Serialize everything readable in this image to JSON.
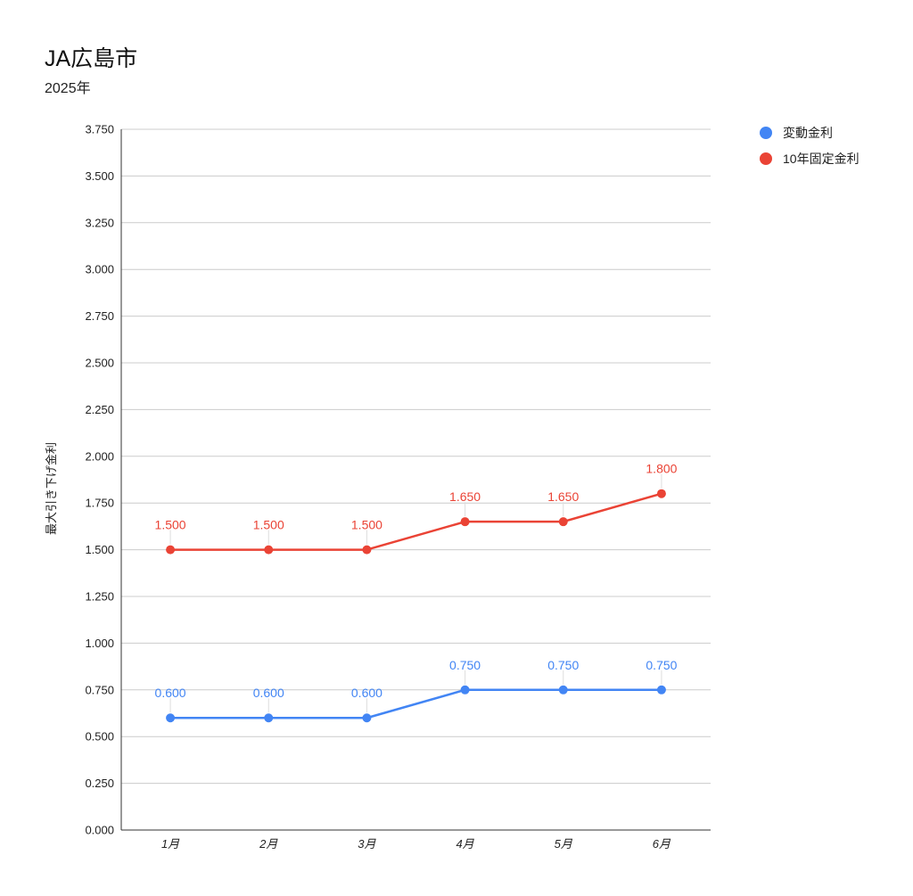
{
  "chart_data": {
    "type": "line",
    "title": "JA広島市",
    "subtitle": "2025年",
    "xlabel": "",
    "ylabel": "最大引き下げ金利",
    "categories": [
      "1月",
      "2月",
      "3月",
      "4月",
      "5月",
      "6月"
    ],
    "ylim": [
      0,
      3.75
    ],
    "yticks": [
      "0.000",
      "0.250",
      "0.500",
      "0.750",
      "1.000",
      "1.250",
      "1.500",
      "1.750",
      "2.000",
      "2.250",
      "2.500",
      "2.750",
      "3.000",
      "3.250",
      "3.500",
      "3.750"
    ],
    "grid": true,
    "legend_position": "top-right",
    "series": [
      {
        "name": "変動金利",
        "color": "#4285f4",
        "values": [
          0.6,
          0.6,
          0.6,
          0.75,
          0.75,
          0.75
        ],
        "labels": [
          "0.600",
          "0.600",
          "0.600",
          "0.750",
          "0.750",
          "0.750"
        ]
      },
      {
        "name": "10年固定金利",
        "color": "#ea4335",
        "values": [
          1.5,
          1.5,
          1.5,
          1.65,
          1.65,
          1.8
        ],
        "labels": [
          "1.500",
          "1.500",
          "1.500",
          "1.650",
          "1.650",
          "1.800"
        ]
      }
    ]
  }
}
